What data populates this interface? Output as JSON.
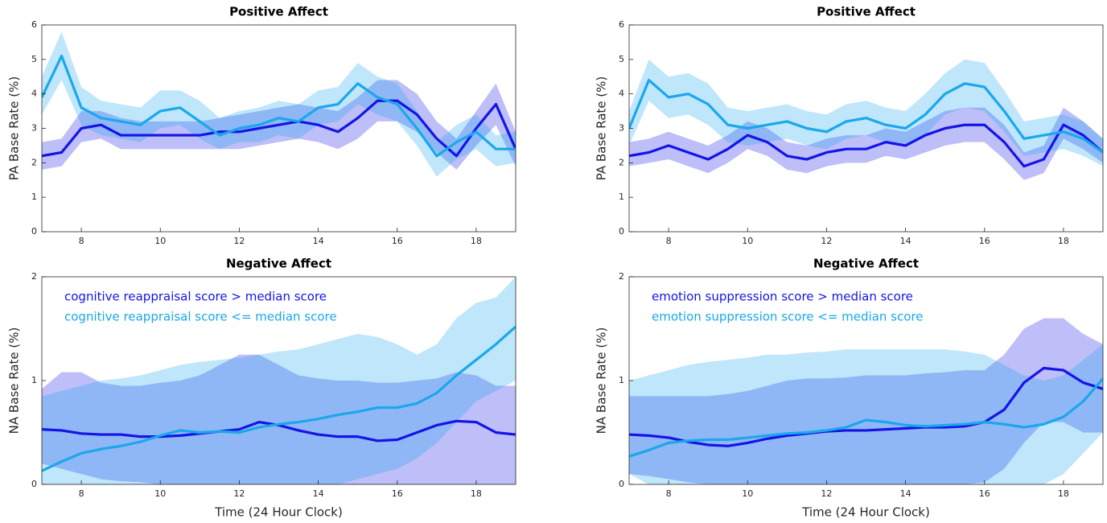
{
  "chart_data": [
    {
      "type": "line",
      "title": "Positive Affect",
      "y_label": "PA Base Rate (%)",
      "x": [
        7,
        7.5,
        8,
        8.5,
        9,
        9.5,
        10,
        10.5,
        11,
        11.5,
        12,
        12.5,
        13,
        13.5,
        14,
        14.5,
        15,
        15.5,
        16,
        16.5,
        17,
        17.5,
        18,
        18.5,
        19
      ],
      "xlim": [
        7,
        19
      ],
      "xticks": [
        8,
        10,
        12,
        14,
        16,
        18
      ],
      "ylim": [
        0,
        6
      ],
      "yticks": [
        0,
        1,
        2,
        3,
        4,
        5,
        6
      ],
      "series": [
        {
          "color": "#1414e6",
          "values": [
            2.2,
            2.3,
            3.0,
            3.1,
            2.8,
            2.8,
            2.8,
            2.8,
            2.8,
            2.9,
            2.9,
            3.0,
            3.1,
            3.2,
            3.1,
            2.9,
            3.3,
            3.8,
            3.8,
            3.4,
            2.7,
            2.2,
            3.0,
            3.7,
            2.4
          ],
          "lower": [
            1.8,
            1.9,
            2.6,
            2.7,
            2.4,
            2.4,
            2.4,
            2.4,
            2.4,
            2.4,
            2.4,
            2.5,
            2.6,
            2.7,
            2.6,
            2.4,
            2.7,
            3.2,
            3.2,
            2.9,
            2.3,
            1.8,
            2.5,
            3.1,
            1.9
          ],
          "upper": [
            2.6,
            2.7,
            3.5,
            3.5,
            3.3,
            3.2,
            3.2,
            3.2,
            3.2,
            3.3,
            3.4,
            3.5,
            3.6,
            3.7,
            3.6,
            3.5,
            3.9,
            4.4,
            4.4,
            4.0,
            3.2,
            2.7,
            3.5,
            4.3,
            2.9
          ]
        },
        {
          "color": "#1aa7ec",
          "values": [
            3.9,
            5.1,
            3.6,
            3.3,
            3.2,
            3.1,
            3.5,
            3.6,
            3.2,
            2.8,
            3.0,
            3.1,
            3.3,
            3.2,
            3.6,
            3.7,
            4.3,
            3.9,
            3.7,
            3.0,
            2.2,
            2.6,
            2.9,
            2.4,
            2.4
          ],
          "lower": [
            3.4,
            4.4,
            3.1,
            2.8,
            2.7,
            2.6,
            3.0,
            3.1,
            2.7,
            2.4,
            2.6,
            2.6,
            2.8,
            2.7,
            3.1,
            3.2,
            3.7,
            3.4,
            3.2,
            2.5,
            1.6,
            2.1,
            2.4,
            1.9,
            2.0
          ],
          "upper": [
            4.5,
            5.8,
            4.2,
            3.8,
            3.7,
            3.6,
            4.1,
            4.1,
            3.8,
            3.3,
            3.5,
            3.6,
            3.8,
            3.7,
            4.1,
            4.2,
            4.9,
            4.5,
            4.3,
            3.5,
            2.6,
            3.1,
            3.4,
            2.8,
            2.9
          ]
        }
      ]
    },
    {
      "type": "line",
      "title": "Positive Affect",
      "y_label": "PA Base Rate (%)",
      "x": [
        7,
        7.5,
        8,
        8.5,
        9,
        9.5,
        10,
        10.5,
        11,
        11.5,
        12,
        12.5,
        13,
        13.5,
        14,
        14.5,
        15,
        15.5,
        16,
        16.5,
        17,
        17.5,
        18,
        18.5,
        19
      ],
      "xlim": [
        7,
        19
      ],
      "xticks": [
        8,
        10,
        12,
        14,
        16,
        18
      ],
      "ylim": [
        0,
        6
      ],
      "yticks": [
        0,
        1,
        2,
        3,
        4,
        5,
        6
      ],
      "series": [
        {
          "color": "#1414e6",
          "values": [
            2.2,
            2.3,
            2.5,
            2.3,
            2.1,
            2.4,
            2.8,
            2.6,
            2.2,
            2.1,
            2.3,
            2.4,
            2.4,
            2.6,
            2.5,
            2.8,
            3.0,
            3.1,
            3.1,
            2.6,
            1.9,
            2.1,
            3.1,
            2.8,
            2.3
          ],
          "lower": [
            1.9,
            2.0,
            2.1,
            1.9,
            1.7,
            2.0,
            2.4,
            2.2,
            1.8,
            1.7,
            1.9,
            2.0,
            2.0,
            2.2,
            2.1,
            2.3,
            2.5,
            2.6,
            2.6,
            2.1,
            1.5,
            1.7,
            2.7,
            2.4,
            2.0
          ],
          "upper": [
            2.6,
            2.7,
            2.9,
            2.7,
            2.5,
            2.8,
            3.2,
            3.0,
            2.6,
            2.5,
            2.7,
            2.8,
            2.8,
            3.0,
            2.9,
            3.2,
            3.5,
            3.6,
            3.6,
            3.1,
            2.3,
            2.5,
            3.6,
            3.2,
            2.7
          ]
        },
        {
          "color": "#1aa7ec",
          "values": [
            3.0,
            4.4,
            3.9,
            4.0,
            3.7,
            3.1,
            3.0,
            3.1,
            3.2,
            3.0,
            2.9,
            3.2,
            3.3,
            3.1,
            3.0,
            3.4,
            4.0,
            4.3,
            4.2,
            3.5,
            2.7,
            2.8,
            2.9,
            2.7,
            2.3
          ],
          "lower": [
            2.5,
            3.8,
            3.3,
            3.4,
            3.1,
            2.6,
            2.5,
            2.6,
            2.7,
            2.5,
            2.4,
            2.7,
            2.8,
            2.6,
            2.5,
            2.8,
            3.4,
            3.6,
            3.5,
            2.9,
            2.2,
            2.3,
            2.4,
            2.2,
            1.9
          ],
          "upper": [
            3.5,
            5.0,
            4.5,
            4.6,
            4.3,
            3.6,
            3.5,
            3.6,
            3.7,
            3.5,
            3.4,
            3.7,
            3.8,
            3.6,
            3.5,
            4.0,
            4.6,
            5.0,
            4.9,
            4.1,
            3.2,
            3.3,
            3.4,
            3.2,
            2.7
          ]
        }
      ]
    },
    {
      "type": "line",
      "title": "Negative Affect",
      "y_label": "NA Base Rate (%)",
      "x_label": "Time (24 Hour Clock)",
      "x": [
        7,
        7.5,
        8,
        8.5,
        9,
        9.5,
        10,
        10.5,
        11,
        11.5,
        12,
        12.5,
        13,
        13.5,
        14,
        14.5,
        15,
        15.5,
        16,
        16.5,
        17,
        17.5,
        18,
        18.5,
        19
      ],
      "xlim": [
        7,
        19
      ],
      "xticks": [
        8,
        10,
        12,
        14,
        16,
        18
      ],
      "ylim": [
        0,
        2
      ],
      "yticks": [
        0,
        1,
        2
      ],
      "series": [
        {
          "name": "cognitive reappraisal score  >  median score",
          "color": "#1414e6",
          "values": [
            0.53,
            0.52,
            0.49,
            0.48,
            0.48,
            0.46,
            0.46,
            0.47,
            0.49,
            0.51,
            0.53,
            0.6,
            0.57,
            0.52,
            0.48,
            0.46,
            0.46,
            0.42,
            0.43,
            0.5,
            0.57,
            0.61,
            0.6,
            0.5,
            0.48
          ],
          "lower": [
            0.2,
            0.15,
            0.1,
            0.05,
            0.03,
            0.02,
            0,
            0,
            0,
            0,
            0,
            0,
            0,
            0,
            0,
            0,
            0,
            0,
            0,
            0,
            0,
            0,
            0,
            0,
            0
          ],
          "upper": [
            0.92,
            1.08,
            1.08,
            0.98,
            0.95,
            0.95,
            0.98,
            1.0,
            1.05,
            1.15,
            1.25,
            1.25,
            1.15,
            1.05,
            1.02,
            1.0,
            1.0,
            0.98,
            0.98,
            1.0,
            1.02,
            1.08,
            1.05,
            0.95,
            0.95
          ]
        },
        {
          "name": "cognitive reappraisal score <= median score",
          "color": "#1aa7ec",
          "values": [
            0.13,
            0.22,
            0.3,
            0.34,
            0.37,
            0.41,
            0.47,
            0.52,
            0.5,
            0.51,
            0.5,
            0.55,
            0.58,
            0.6,
            0.63,
            0.67,
            0.7,
            0.74,
            0.74,
            0.78,
            0.88,
            1.05,
            1.2,
            1.35,
            1.52
          ],
          "lower": [
            0,
            0,
            0,
            0,
            0,
            0,
            0,
            0,
            0,
            0,
            0,
            0,
            0,
            0,
            0,
            0,
            0.05,
            0.1,
            0.15,
            0.25,
            0.4,
            0.6,
            0.8,
            0.9,
            1.0
          ],
          "upper": [
            0.85,
            0.9,
            0.95,
            1.0,
            1.02,
            1.05,
            1.1,
            1.15,
            1.18,
            1.2,
            1.22,
            1.25,
            1.28,
            1.3,
            1.35,
            1.4,
            1.45,
            1.42,
            1.35,
            1.25,
            1.35,
            1.6,
            1.75,
            1.8,
            2.0
          ]
        }
      ]
    },
    {
      "type": "line",
      "title": "Negative Affect",
      "y_label": "NA Base Rate (%)",
      "x_label": "Time (24 Hour Clock)",
      "x": [
        7,
        7.5,
        8,
        8.5,
        9,
        9.5,
        10,
        10.5,
        11,
        11.5,
        12,
        12.5,
        13,
        13.5,
        14,
        14.5,
        15,
        15.5,
        16,
        16.5,
        17,
        17.5,
        18,
        18.5,
        19
      ],
      "xlim": [
        7,
        19
      ],
      "xticks": [
        8,
        10,
        12,
        14,
        16,
        18
      ],
      "ylim": [
        0,
        2
      ],
      "yticks": [
        0,
        1,
        2
      ],
      "series": [
        {
          "name": "emotion suppression score  >  median score",
          "color": "#1414e6",
          "values": [
            0.48,
            0.47,
            0.45,
            0.41,
            0.38,
            0.37,
            0.4,
            0.44,
            0.47,
            0.49,
            0.51,
            0.52,
            0.52,
            0.53,
            0.54,
            0.55,
            0.55,
            0.56,
            0.6,
            0.72,
            0.98,
            1.12,
            1.1,
            0.98,
            0.92
          ],
          "lower": [
            0.1,
            0.08,
            0.05,
            0.02,
            0,
            0,
            0,
            0,
            0,
            0,
            0,
            0,
            0,
            0,
            0,
            0,
            0,
            0,
            0.02,
            0.15,
            0.4,
            0.6,
            0.6,
            0.5,
            0.5
          ],
          "upper": [
            0.85,
            0.85,
            0.85,
            0.85,
            0.85,
            0.87,
            0.9,
            0.95,
            1.0,
            1.02,
            1.02,
            1.03,
            1.05,
            1.05,
            1.05,
            1.07,
            1.08,
            1.1,
            1.1,
            1.25,
            1.5,
            1.6,
            1.6,
            1.45,
            1.35
          ]
        },
        {
          "name": "emotion suppression score <= median score",
          "color": "#1aa7ec",
          "values": [
            0.27,
            0.33,
            0.4,
            0.42,
            0.43,
            0.43,
            0.45,
            0.47,
            0.49,
            0.5,
            0.52,
            0.55,
            0.62,
            0.6,
            0.57,
            0.56,
            0.57,
            0.58,
            0.6,
            0.58,
            0.55,
            0.58,
            0.65,
            0.8,
            1.02
          ],
          "lower": [
            0.1,
            0,
            0,
            0,
            0,
            0,
            0,
            0,
            0,
            0,
            0,
            0,
            0,
            0,
            0,
            0,
            0,
            0,
            0,
            0,
            0,
            0,
            0.1,
            0.3,
            0.5
          ],
          "upper": [
            1.0,
            1.05,
            1.1,
            1.15,
            1.18,
            1.2,
            1.22,
            1.25,
            1.25,
            1.27,
            1.28,
            1.3,
            1.3,
            1.3,
            1.3,
            1.3,
            1.3,
            1.28,
            1.25,
            1.15,
            1.05,
            1.0,
            1.05,
            1.2,
            1.35
          ]
        }
      ]
    }
  ]
}
